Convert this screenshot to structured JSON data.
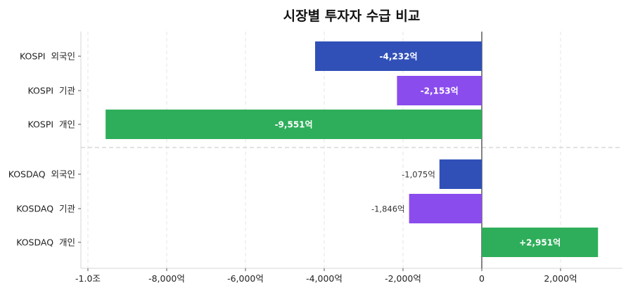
{
  "chart_data": {
    "type": "bar",
    "orientation": "horizontal",
    "title": "시장별 투자자 수급 비교",
    "xlabel": "",
    "ylabel": "",
    "xlim": [
      -10300,
      3600
    ],
    "grid": "vertical-dashed",
    "categories": [
      "KOSPI 외국인",
      "KOSPI 기관",
      "KOSPI 개인",
      "KOSDAQ 외국인",
      "KOSDAQ 기관",
      "KOSDAQ 개인"
    ],
    "values": [
      -4232,
      -2153,
      -9551,
      -1075,
      -1846,
      2951
    ],
    "value_labels": [
      "-4,232억",
      "-2,153억",
      "-9,551억",
      "-1,075억",
      "-1,846억",
      "+2,951억"
    ],
    "label_inside": [
      true,
      true,
      true,
      false,
      false,
      true
    ],
    "colors": [
      "#3050b8",
      "#8b4ced",
      "#2eae5a",
      "#3050b8",
      "#8b4ced",
      "#2eae5a"
    ],
    "x_ticks": [
      -10000,
      -8000,
      -6000,
      -4000,
      -2000,
      0,
      2000
    ],
    "x_tick_labels": [
      "-1.0조",
      "-8,000억",
      "-6,000억",
      "-4,000억",
      "-2,000억",
      "0",
      "2,000억"
    ],
    "group_separator_after_index": 2
  }
}
